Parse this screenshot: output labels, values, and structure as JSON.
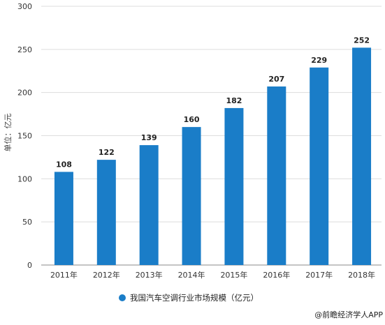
{
  "chart_data": {
    "type": "bar",
    "categories": [
      "2011年",
      "2012年",
      "2013年",
      "2014年",
      "2015年",
      "2016年",
      "2017年",
      "2018年"
    ],
    "series": [
      {
        "name": "我国汽车空调行业市场规模（亿元）",
        "values": [
          108,
          122,
          139,
          160,
          182,
          207,
          229,
          252
        ],
        "color": "#1a7dc8"
      }
    ],
    "ylabel": "单位：亿元",
    "ylim": [
      0,
      300
    ],
    "yticks": [
      0,
      50,
      100,
      150,
      200,
      250,
      300
    ],
    "grid": true,
    "legend": "bottom"
  },
  "credit": "@前瞻经济学人APP",
  "colors": {
    "bar": "#1a7dc8",
    "grid": "#dddddd",
    "axis": "#888888"
  }
}
